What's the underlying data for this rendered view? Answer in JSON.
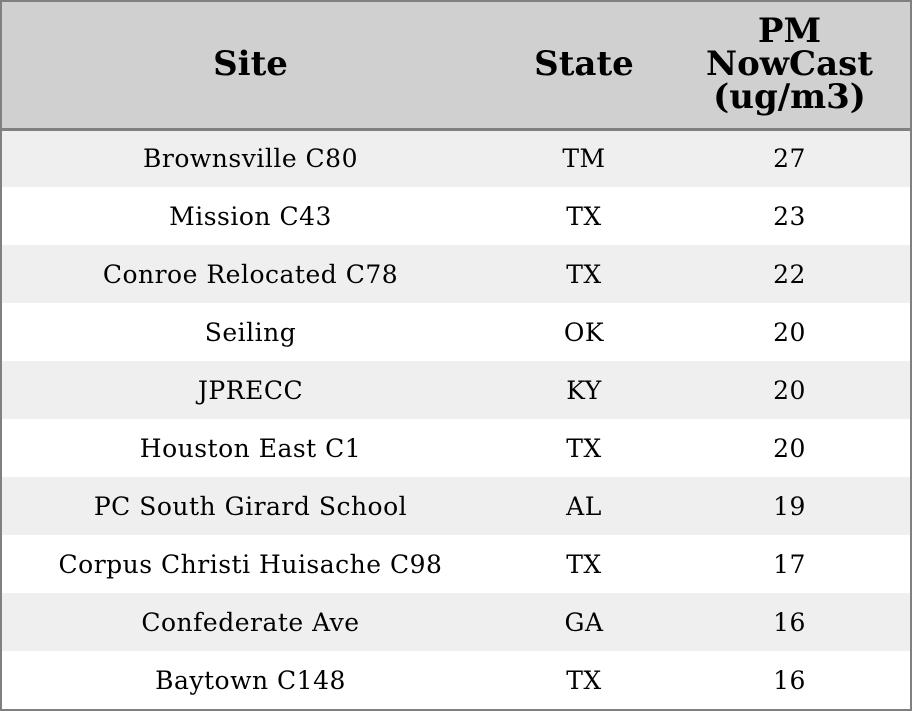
{
  "chart_data": {
    "type": "table",
    "columns": [
      "Site",
      "State",
      "PM NowCast (ug/m3)"
    ],
    "header_lines": {
      "pm": [
        "PM",
        "NowCast",
        "(ug/m3)"
      ]
    },
    "rows": [
      {
        "site": "Brownsville C80",
        "state": "TM",
        "pm": "27"
      },
      {
        "site": "Mission C43",
        "state": "TX",
        "pm": "23"
      },
      {
        "site": "Conroe Relocated C78",
        "state": "TX",
        "pm": "22"
      },
      {
        "site": "Seiling",
        "state": "OK",
        "pm": "20"
      },
      {
        "site": "JPRECC",
        "state": "KY",
        "pm": "20"
      },
      {
        "site": "Houston East C1",
        "state": "TX",
        "pm": "20"
      },
      {
        "site": "PC South Girard School",
        "state": "AL",
        "pm": "19"
      },
      {
        "site": "Corpus Christi Huisache C98",
        "state": "TX",
        "pm": "17"
      },
      {
        "site": "Confederate Ave",
        "state": "GA",
        "pm": "16"
      },
      {
        "site": "Baytown C148",
        "state": "TX",
        "pm": "16"
      }
    ]
  },
  "colors": {
    "header_bg": "#d0d0d0",
    "row_odd": "#efefef",
    "row_even": "#ffffff",
    "border": "#808080"
  }
}
